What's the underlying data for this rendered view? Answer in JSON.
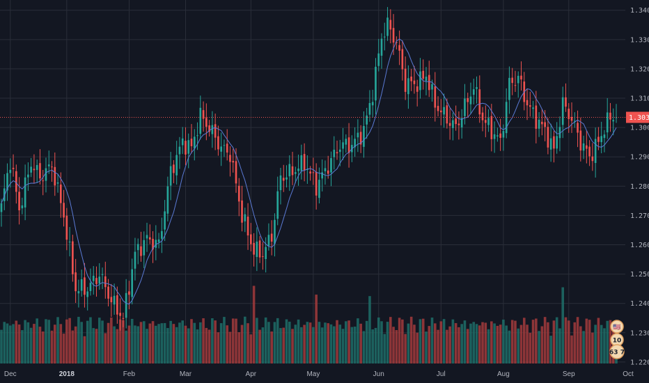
{
  "colors": {
    "background": "#131722",
    "grid": "#2a2e39",
    "up": "#26a69a",
    "down": "#ef5350",
    "up_volume": "#1e6f68",
    "down_volume": "#a33b3c",
    "ma": "#5b7bd6",
    "last_price": "#ef5350",
    "axis_text": "#b2b5be"
  },
  "chart_data": {
    "type": "candlestick",
    "symbol_pair": "GBPUSD-style daily candles",
    "y_axis": {
      "ylim": [
        1.2195,
        1.3435
      ],
      "ticks": [
        "1.34000",
        "1.33000",
        "1.32000",
        "1.31000",
        "1.30000",
        "1.29000",
        "1.28000",
        "1.27000",
        "1.26000",
        "1.25000",
        "1.24000",
        "1.23000",
        "1.22000"
      ],
      "tick_values": [
        1.34,
        1.33,
        1.32,
        1.31,
        1.3,
        1.29,
        1.28,
        1.27,
        1.26,
        1.25,
        1.24,
        1.23,
        1.22
      ]
    },
    "x_axis": {
      "labels": [
        {
          "text": "Dec",
          "index": 3,
          "bold": false
        },
        {
          "text": "2018",
          "index": 22,
          "bold": true
        },
        {
          "text": "Feb",
          "index": 43,
          "bold": false
        },
        {
          "text": "Mar",
          "index": 62,
          "bold": false
        },
        {
          "text": "Apr",
          "index": 84,
          "bold": false
        },
        {
          "text": "May",
          "index": 105,
          "bold": false
        },
        {
          "text": "Jun",
          "index": 127,
          "bold": false
        },
        {
          "text": "Jul",
          "index": 148,
          "bold": false
        },
        {
          "text": "Aug",
          "index": 169,
          "bold": false
        },
        {
          "text": "Sep",
          "index": 191,
          "bold": false
        },
        {
          "text": "Oct",
          "index": 211,
          "bold": false
        }
      ]
    },
    "last_price": {
      "value": 1.30347,
      "label": "1.30347"
    },
    "grid": true,
    "moving_average": "short period MA overlay",
    "anchor_closes": [
      [
        0,
        1.273
      ],
      [
        3,
        1.289
      ],
      [
        6,
        1.272
      ],
      [
        10,
        1.288
      ],
      [
        13,
        1.283
      ],
      [
        17,
        1.287
      ],
      [
        21,
        1.27
      ],
      [
        25,
        1.245
      ],
      [
        29,
        1.245
      ],
      [
        33,
        1.25
      ],
      [
        37,
        1.241
      ],
      [
        41,
        1.235
      ],
      [
        45,
        1.257
      ],
      [
        49,
        1.262
      ],
      [
        53,
        1.26
      ],
      [
        57,
        1.285
      ],
      [
        61,
        1.295
      ],
      [
        64,
        1.293
      ],
      [
        67,
        1.304
      ],
      [
        70,
        1.3
      ],
      [
        74,
        1.293
      ],
      [
        77,
        1.291
      ],
      [
        81,
        1.27
      ],
      [
        85,
        1.258
      ],
      [
        88,
        1.257
      ],
      [
        91,
        1.263
      ],
      [
        94,
        1.283
      ],
      [
        98,
        1.285
      ],
      [
        102,
        1.288
      ],
      [
        106,
        1.28
      ],
      [
        110,
        1.287
      ],
      [
        114,
        1.294
      ],
      [
        118,
        1.294
      ],
      [
        122,
        1.299
      ],
      [
        125,
        1.312
      ],
      [
        128,
        1.331
      ],
      [
        130,
        1.335
      ],
      [
        133,
        1.329
      ],
      [
        136,
        1.315
      ],
      [
        140,
        1.315
      ],
      [
        143,
        1.318
      ],
      [
        146,
        1.308
      ],
      [
        150,
        1.303
      ],
      [
        153,
        1.3
      ],
      [
        156,
        1.307
      ],
      [
        159,
        1.314
      ],
      [
        162,
        1.303
      ],
      [
        165,
        1.299
      ],
      [
        168,
        1.295
      ],
      [
        171,
        1.315
      ],
      [
        174,
        1.317
      ],
      [
        177,
        1.308
      ],
      [
        180,
        1.303
      ],
      [
        183,
        1.299
      ],
      [
        186,
        1.292
      ],
      [
        189,
        1.308
      ],
      [
        192,
        1.303
      ],
      [
        195,
        1.295
      ],
      [
        198,
        1.29
      ],
      [
        201,
        1.295
      ],
      [
        203,
        1.3
      ],
      [
        205,
        1.3035
      ]
    ],
    "volume_spikes": [
      [
        85,
        1.246
      ],
      [
        106,
        1.243
      ],
      [
        124,
        1.2425
      ],
      [
        189,
        1.2455
      ]
    ]
  },
  "indicator_badges": [
    {
      "name": "flag-badge",
      "text": "🇺🇸"
    },
    {
      "name": "calendar-badge",
      "text": "10"
    },
    {
      "name": "counter-badge",
      "text": "63 7"
    }
  ]
}
